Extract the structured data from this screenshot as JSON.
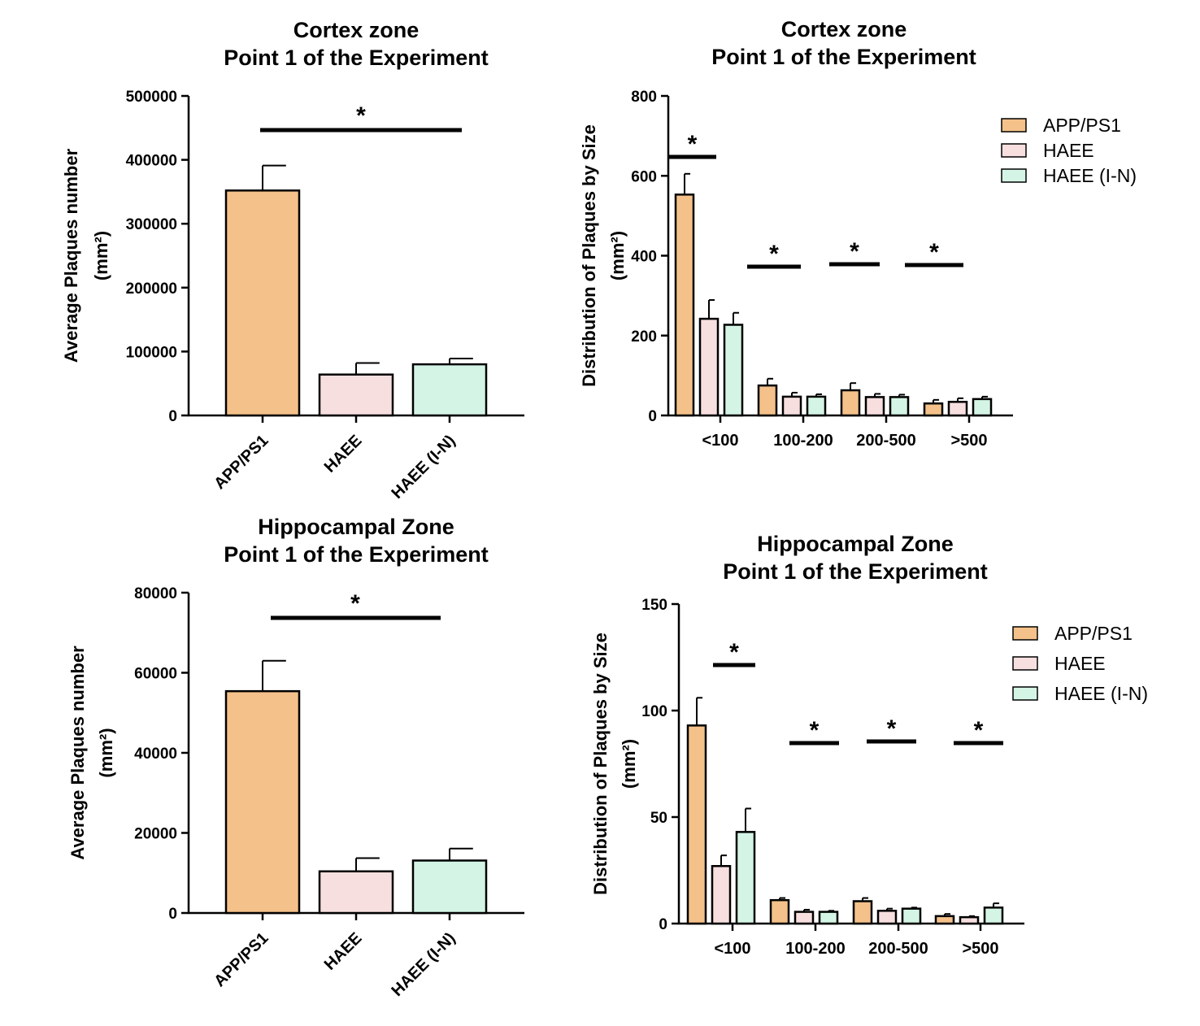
{
  "chart_data": [
    {
      "id": "cortex-total",
      "type": "bar",
      "title": "Cortex zone",
      "subtitle": "Point 1 of the Experiment",
      "ylabel": "Average Plaques number",
      "ylabel_unit": "(mm²)",
      "categories": [
        "APP/PS1",
        "HAEE",
        "HAEE (I-N)"
      ],
      "values": [
        352000,
        64000,
        80000
      ],
      "errors": [
        39000,
        18000,
        9000
      ],
      "colors": [
        "#F4C18A",
        "#F7DFDF",
        "#D4F5E5"
      ],
      "ylim": [
        0,
        500000
      ],
      "yticks": [
        0,
        100000,
        200000,
        300000,
        400000,
        500000
      ],
      "ytick_labels": [
        "0",
        "100000",
        "200000",
        "300000",
        "400000",
        "500000"
      ],
      "significance": [
        {
          "from": 0,
          "to": 2,
          "label": "*"
        }
      ],
      "grid": false,
      "legend": null
    },
    {
      "id": "cortex-size",
      "type": "bar",
      "title": "Cortex zone",
      "subtitle": "Point 1 of the Experiment",
      "ylabel": "Distribution of Plaques by Size",
      "ylabel_unit": "(mm²)",
      "categories": [
        "<100",
        "100-200",
        "200-500",
        ">500"
      ],
      "series": [
        {
          "name": "APP/PS1",
          "color": "#F4C18A",
          "values": [
            553,
            75,
            63,
            30
          ],
          "errors": [
            52,
            17,
            18,
            9
          ]
        },
        {
          "name": "HAEE",
          "color": "#F7DFDF",
          "values": [
            242,
            47,
            46,
            34
          ],
          "errors": [
            47,
            10,
            8,
            9
          ]
        },
        {
          "name": "HAEE (I-N)",
          "color": "#D4F5E5",
          "values": [
            227,
            47,
            46,
            41
          ],
          "errors": [
            30,
            6,
            6,
            6
          ]
        }
      ],
      "ylim": [
        0,
        800
      ],
      "yticks": [
        0,
        200,
        400,
        600,
        800
      ],
      "ytick_labels": [
        "0",
        "200",
        "400",
        "600",
        "800"
      ],
      "significance": [
        {
          "category": 0,
          "label": "*"
        },
        {
          "category": 1,
          "label": "*"
        },
        {
          "category": 2,
          "label": "*"
        },
        {
          "category": 3,
          "label": "*"
        }
      ],
      "grid": false,
      "legend": "top-right"
    },
    {
      "id": "hippocampal-total",
      "type": "bar",
      "title": "Hippocampal Zone",
      "subtitle": "Point 1 of the Experiment",
      "ylabel": "Average Plaques number",
      "ylabel_unit": "(mm²)",
      "categories": [
        "APP/PS1",
        "HAEE",
        "HAEE (I-N)"
      ],
      "values": [
        55400,
        10400,
        13100
      ],
      "errors": [
        7600,
        3300,
        3000
      ],
      "colors": [
        "#F4C18A",
        "#F7DFDF",
        "#D4F5E5"
      ],
      "ylim": [
        0,
        80000
      ],
      "yticks": [
        0,
        20000,
        40000,
        60000,
        80000
      ],
      "ytick_labels": [
        "0",
        "20000",
        "40000",
        "60000",
        "80000"
      ],
      "significance": [
        {
          "from": 0,
          "to": 2,
          "label": "*"
        }
      ],
      "grid": false,
      "legend": null
    },
    {
      "id": "hippocampal-size",
      "type": "bar",
      "title": "Hippocampal Zone",
      "subtitle": "Point 1 of the Experiment",
      "ylabel": "Distribution of Plaques by Size",
      "ylabel_unit": "(mm²)",
      "categories": [
        "<100",
        "100-200",
        "200-500",
        ">500"
      ],
      "series": [
        {
          "name": "APP/PS1",
          "color": "#F4C18A",
          "values": [
            93,
            11,
            10.5,
            3.5
          ],
          "errors": [
            13,
            1,
            1.5,
            1
          ]
        },
        {
          "name": "HAEE",
          "color": "#F7DFDF",
          "values": [
            27,
            5.5,
            6,
            3
          ],
          "errors": [
            5,
            1,
            1,
            0.5
          ]
        },
        {
          "name": "HAEE (I-N)",
          "color": "#D4F5E5",
          "values": [
            43,
            5.5,
            7,
            7.5
          ],
          "errors": [
            11,
            0.5,
            0.5,
            2
          ]
        }
      ],
      "ylim": [
        0,
        150
      ],
      "yticks": [
        0,
        50,
        100,
        150
      ],
      "ytick_labels": [
        "0",
        "50",
        "100",
        "150"
      ],
      "significance": [
        {
          "category": 0,
          "label": "*"
        },
        {
          "category": 1,
          "label": "*"
        },
        {
          "category": 2,
          "label": "*"
        },
        {
          "category": 3,
          "label": "*"
        }
      ],
      "grid": false,
      "legend": "top-right"
    }
  ]
}
